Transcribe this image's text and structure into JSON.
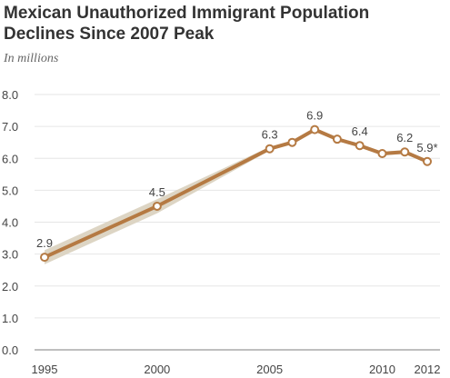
{
  "chart_data": {
    "type": "line",
    "title": "Mexican Unauthorized  Immigrant Population Declines Since 2007 Peak",
    "subtitle": "In millions",
    "xlabel": "",
    "ylabel": "",
    "ylim": [
      0,
      8
    ],
    "xlim": [
      1995,
      2012
    ],
    "yticks": [
      "8.0",
      "7.0",
      "6.0",
      "5.0",
      "4.0",
      "3.0",
      "2.0",
      "1.0",
      "0.0"
    ],
    "xticks": [
      "1995",
      "2000",
      "2005",
      "2010",
      "2012"
    ],
    "grid": true,
    "series": [
      {
        "x": [
          1995,
          2000,
          2005,
          2006,
          2007,
          2008,
          2009,
          2010,
          2011,
          2012
        ],
        "values": [
          2.9,
          4.5,
          6.3,
          6.5,
          6.9,
          6.6,
          6.4,
          6.15,
          6.2,
          5.9
        ]
      }
    ],
    "data_labels": [
      {
        "x": 1995,
        "text": "2.9"
      },
      {
        "x": 2000,
        "text": "4.5"
      },
      {
        "x": 2005,
        "text": "6.3"
      },
      {
        "x": 2007,
        "text": "6.9"
      },
      {
        "x": 2009,
        "text": "6.4"
      },
      {
        "x": 2011,
        "text": "6.2"
      },
      {
        "x": 2012,
        "text": "5.9*"
      }
    ],
    "colors": {
      "line": "#b57a43",
      "band": "#ddd5c4",
      "grid": "#e6e6e6",
      "axis": "#999999"
    }
  }
}
